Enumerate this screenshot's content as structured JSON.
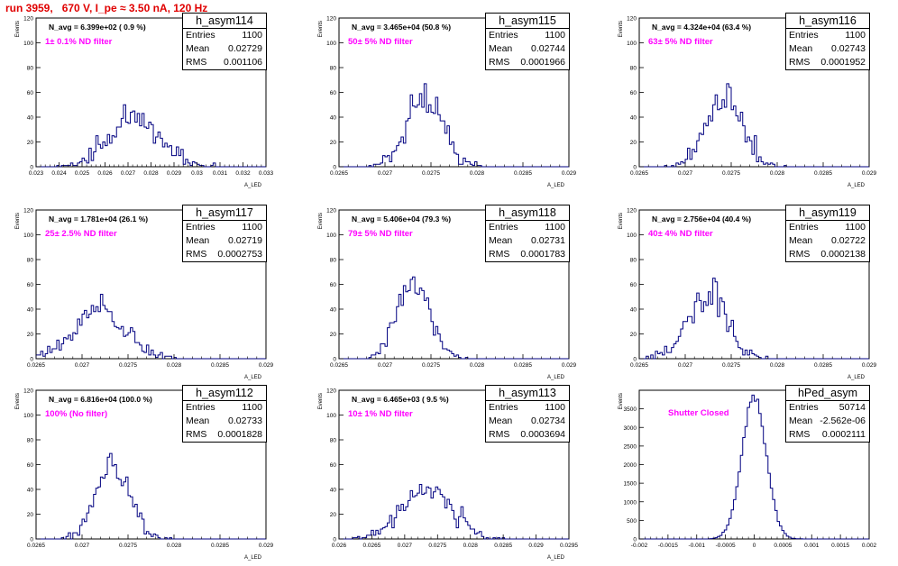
{
  "title": "run 3959,   670 V, I_pe ≈ 3.50 nA, 120 Hz",
  "colors": {
    "title": "#e00000",
    "histogram": "#000080",
    "filter_label": "#ff00ff"
  },
  "stat_labels": {
    "entries": "Entries",
    "mean": "Mean",
    "rms": "RMS"
  },
  "y_axis_title": "Events",
  "x_axis_title": "A_LED",
  "chart_data": [
    {
      "type": "histogram",
      "name": "h_asym114",
      "entries": "1100",
      "mean": "0.02729",
      "rms": "0.001106",
      "navg": "N_avg = 6.399e+02 ( 0.9 %)",
      "filter": "1± 0.1% ND filter",
      "xlim": [
        0.023,
        0.033
      ],
      "ylim": [
        0,
        120
      ],
      "xticks": [
        "0.023",
        "0.024",
        "0.025",
        "0.026",
        "0.027",
        "0.028",
        "0.029",
        "0.03",
        "0.031",
        "0.032",
        "0.033"
      ],
      "yticks": [
        "0",
        "20",
        "40",
        "60",
        "80",
        "100",
        "120"
      ],
      "mu": 0.02729,
      "sigma": 0.001106,
      "n": 1100,
      "bins": 100,
      "seed": 7
    },
    {
      "type": "histogram",
      "name": "h_asym115",
      "entries": "1100",
      "mean": "0.02744",
      "rms": "0.0001966",
      "navg": "N_avg = 3.465e+04 (50.8 %)",
      "filter": "50± 5% ND filter",
      "xlim": [
        0.0265,
        0.029
      ],
      "ylim": [
        0,
        120
      ],
      "xticks": [
        "0.0265",
        "0.027",
        "0.0275",
        "0.028",
        "0.0285",
        "0.029"
      ],
      "yticks": [
        "0",
        "20",
        "40",
        "60",
        "80",
        "100",
        "120"
      ],
      "mu": 0.02744,
      "sigma": 0.0001966,
      "n": 1100,
      "bins": 100,
      "seed": 11
    },
    {
      "type": "histogram",
      "name": "h_asym116",
      "entries": "1100",
      "mean": "0.02743",
      "rms": "0.0001952",
      "navg": "N_avg = 4.324e+04 (63.4 %)",
      "filter": "63± 5% ND filter",
      "xlim": [
        0.0265,
        0.029
      ],
      "ylim": [
        0,
        120
      ],
      "xticks": [
        "0.0265",
        "0.027",
        "0.0275",
        "0.028",
        "0.0285",
        "0.029"
      ],
      "yticks": [
        "0",
        "20",
        "40",
        "60",
        "80",
        "100",
        "120"
      ],
      "mu": 0.02743,
      "sigma": 0.0001952,
      "n": 1100,
      "bins": 100,
      "seed": 13
    },
    {
      "type": "histogram",
      "name": "h_asym117",
      "entries": "1100",
      "mean": "0.02719",
      "rms": "0.0002753",
      "navg": "N_avg = 1.781e+04 (26.1 %)",
      "filter": "25± 2.5% ND filter",
      "xlim": [
        0.0265,
        0.029
      ],
      "ylim": [
        0,
        120
      ],
      "xticks": [
        "0.0265",
        "0.027",
        "0.0275",
        "0.028",
        "0.0285",
        "0.029"
      ],
      "yticks": [
        "0",
        "20",
        "40",
        "60",
        "80",
        "100",
        "120"
      ],
      "mu": 0.02719,
      "sigma": 0.0002753,
      "n": 1100,
      "bins": 100,
      "seed": 17
    },
    {
      "type": "histogram",
      "name": "h_asym118",
      "entries": "1100",
      "mean": "0.02731",
      "rms": "0.0001783",
      "navg": "N_avg = 5.406e+04 (79.3 %)",
      "filter": "79± 5% ND filter",
      "xlim": [
        0.0265,
        0.029
      ],
      "ylim": [
        0,
        120
      ],
      "xticks": [
        "0.0265",
        "0.027",
        "0.0275",
        "0.028",
        "0.0285",
        "0.029"
      ],
      "yticks": [
        "0",
        "20",
        "40",
        "60",
        "80",
        "100",
        "120"
      ],
      "mu": 0.02731,
      "sigma": 0.0001783,
      "n": 1100,
      "bins": 100,
      "seed": 19
    },
    {
      "type": "histogram",
      "name": "h_asym119",
      "entries": "1100",
      "mean": "0.02722",
      "rms": "0.0002138",
      "navg": "N_avg = 2.756e+04 (40.4 %)",
      "filter": "40± 4% ND filter",
      "xlim": [
        0.0265,
        0.029
      ],
      "ylim": [
        0,
        120
      ],
      "xticks": [
        "0.0265",
        "0.027",
        "0.0275",
        "0.028",
        "0.0285",
        "0.029"
      ],
      "yticks": [
        "0",
        "20",
        "40",
        "60",
        "80",
        "100",
        "120"
      ],
      "mu": 0.02722,
      "sigma": 0.0002138,
      "n": 1100,
      "bins": 100,
      "seed": 23
    },
    {
      "type": "histogram",
      "name": "h_asym112",
      "entries": "1100",
      "mean": "0.02733",
      "rms": "0.0001828",
      "navg": "N_avg = 6.816e+04 (100.0 %)",
      "filter": "100% (No filter)",
      "xlim": [
        0.0265,
        0.029
      ],
      "ylim": [
        0,
        120
      ],
      "xticks": [
        "0.0265",
        "0.027",
        "0.0275",
        "0.028",
        "0.0285",
        "0.029"
      ],
      "yticks": [
        "0",
        "20",
        "40",
        "60",
        "80",
        "100",
        "120"
      ],
      "mu": 0.02733,
      "sigma": 0.0001828,
      "n": 1100,
      "bins": 100,
      "seed": 29
    },
    {
      "type": "histogram",
      "name": "h_asym113",
      "entries": "1100",
      "mean": "0.02734",
      "rms": "0.0003694",
      "navg": "N_avg = 6.465e+03 ( 9.5 %)",
      "filter": "10± 1% ND filter",
      "xlim": [
        0.026,
        0.0295
      ],
      "ylim": [
        0,
        120
      ],
      "xticks": [
        "0.026",
        "0.0265",
        "0.027",
        "0.0275",
        "0.028",
        "0.0285",
        "0.029",
        "0.0295"
      ],
      "yticks": [
        "0",
        "20",
        "40",
        "60",
        "80",
        "100",
        "120"
      ],
      "mu": 0.02734,
      "sigma": 0.0003694,
      "n": 1100,
      "bins": 100,
      "seed": 31
    },
    {
      "type": "histogram",
      "name": "hPed_asym",
      "entries": "50714",
      "mean": "-2.562e-06",
      "rms": "0.0002111",
      "navg": "",
      "filter": "Shutter Closed",
      "xlim": [
        -0.002,
        0.002
      ],
      "ylim": [
        0,
        4000
      ],
      "xticks": [
        "-0.002",
        "-0.0015",
        "-0.001",
        "-0.0005",
        "0",
        "0.0005",
        "0.001",
        "0.0015",
        "0.002"
      ],
      "yticks": [
        "0",
        "500",
        "1000",
        "1500",
        "2000",
        "2500",
        "3000",
        "3500"
      ],
      "mu": -2.562e-06,
      "sigma": 0.0002111,
      "n": 50714,
      "bins": 100,
      "seed": 37
    }
  ]
}
